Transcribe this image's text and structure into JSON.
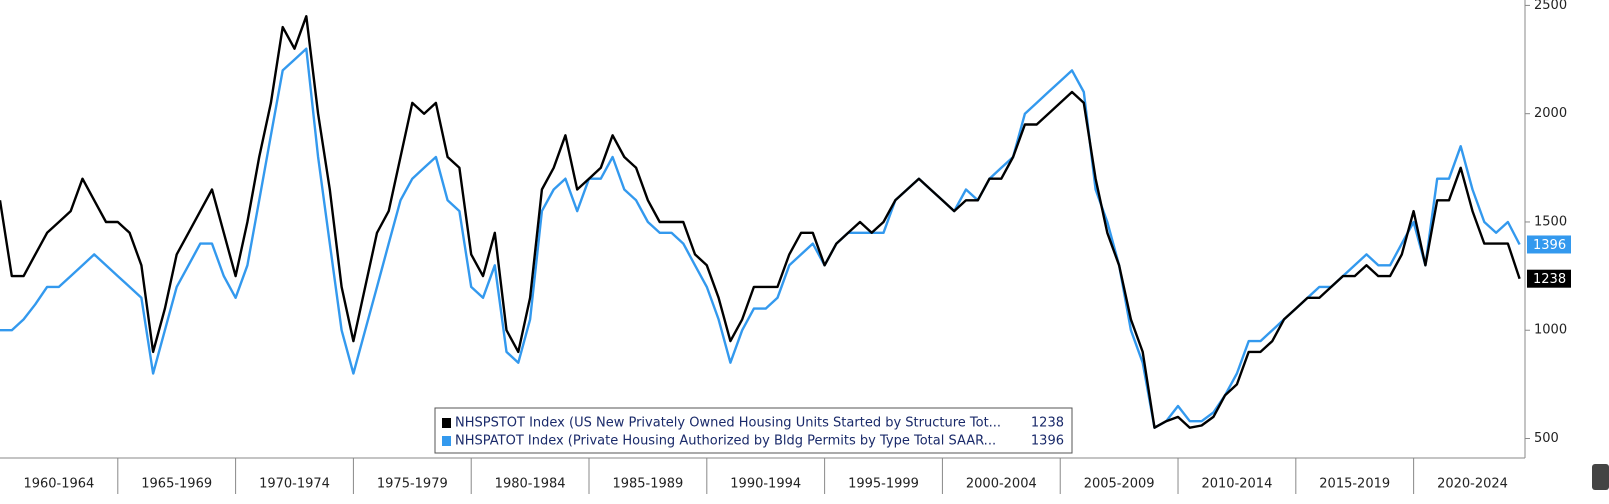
{
  "chart_data": {
    "type": "line",
    "x": [
      1960,
      1960.5,
      1961,
      1961.5,
      1962,
      1962.5,
      1963,
      1963.5,
      1964,
      1964.5,
      1965,
      1965.5,
      1966,
      1966.5,
      1967,
      1967.5,
      1968,
      1968.5,
      1969,
      1969.5,
      1970,
      1970.5,
      1971,
      1971.5,
      1972,
      1972.5,
      1973,
      1973.5,
      1974,
      1974.5,
      1975,
      1975.5,
      1976,
      1976.5,
      1977,
      1977.5,
      1978,
      1978.5,
      1979,
      1979.5,
      1980,
      1980.5,
      1981,
      1981.5,
      1982,
      1982.5,
      1983,
      1983.5,
      1984,
      1984.5,
      1985,
      1985.5,
      1986,
      1986.5,
      1987,
      1987.5,
      1988,
      1988.5,
      1989,
      1989.5,
      1990,
      1990.5,
      1991,
      1991.5,
      1992,
      1992.5,
      1993,
      1993.5,
      1994,
      1994.5,
      1995,
      1995.5,
      1996,
      1996.5,
      1997,
      1997.5,
      1998,
      1998.5,
      1999,
      1999.5,
      2000,
      2000.5,
      2001,
      2001.5,
      2002,
      2002.5,
      2003,
      2003.5,
      2004,
      2004.5,
      2005,
      2005.5,
      2006,
      2006.5,
      2007,
      2007.5,
      2008,
      2008.5,
      2009,
      2009.5,
      2010,
      2010.5,
      2011,
      2011.5,
      2012,
      2012.5,
      2013,
      2013.5,
      2014,
      2014.5,
      2015,
      2015.5,
      2016,
      2016.5,
      2017,
      2017.5,
      2018,
      2018.5,
      2019,
      2019.5,
      2020,
      2020.5,
      2021,
      2021.5,
      2022,
      2022.5,
      2023,
      2023.5,
      2024,
      2024.5
    ],
    "series": [
      {
        "name": "NHSPATOT Index (Private Housing Authorized by Bldg Permits by Type Total SAAR...",
        "color": "#3399ee",
        "last_value": 1396,
        "values": [
          1000,
          1000,
          1050,
          1120,
          1200,
          1200,
          1250,
          1300,
          1350,
          1300,
          1250,
          1200,
          1150,
          800,
          1000,
          1200,
          1300,
          1400,
          1400,
          1250,
          1150,
          1300,
          1600,
          1900,
          2200,
          2250,
          2300,
          1800,
          1400,
          1000,
          800,
          1000,
          1200,
          1400,
          1600,
          1700,
          1750,
          1800,
          1600,
          1550,
          1200,
          1150,
          1300,
          900,
          850,
          1050,
          1550,
          1650,
          1700,
          1550,
          1700,
          1700,
          1800,
          1650,
          1600,
          1500,
          1450,
          1450,
          1400,
          1300,
          1200,
          1050,
          850,
          1000,
          1100,
          1100,
          1150,
          1300,
          1350,
          1400,
          1300,
          1400,
          1450,
          1450,
          1450,
          1450,
          1600,
          1650,
          1700,
          1650,
          1600,
          1550,
          1650,
          1600,
          1700,
          1750,
          1800,
          2000,
          2050,
          2100,
          2150,
          2200,
          2100,
          1650,
          1500,
          1300,
          1000,
          850,
          550,
          580,
          650,
          580,
          580,
          620,
          700,
          800,
          950,
          950,
          1000,
          1050,
          1100,
          1150,
          1200,
          1200,
          1250,
          1300,
          1350,
          1300,
          1300,
          1400,
          1500,
          1300,
          1700,
          1700,
          1850,
          1650,
          1500,
          1450,
          1500,
          1396
        ]
      },
      {
        "name": "NHSPSTOT Index (US New Privately Owned Housing Units Started by Structure Tot...",
        "color": "#000000",
        "last_value": 1238,
        "values": [
          1600,
          1250,
          1250,
          1350,
          1450,
          1500,
          1550,
          1700,
          1600,
          1500,
          1500,
          1450,
          1300,
          900,
          1100,
          1350,
          1450,
          1550,
          1650,
          1450,
          1250,
          1500,
          1800,
          2050,
          2400,
          2300,
          2450,
          2000,
          1650,
          1200,
          950,
          1200,
          1450,
          1550,
          1800,
          2050,
          2000,
          2050,
          1800,
          1750,
          1350,
          1250,
          1450,
          1000,
          900,
          1150,
          1650,
          1750,
          1900,
          1650,
          1700,
          1750,
          1900,
          1800,
          1750,
          1600,
          1500,
          1500,
          1500,
          1350,
          1300,
          1150,
          950,
          1050,
          1200,
          1200,
          1200,
          1350,
          1450,
          1450,
          1300,
          1400,
          1450,
          1500,
          1450,
          1500,
          1600,
          1650,
          1700,
          1650,
          1600,
          1550,
          1600,
          1600,
          1700,
          1700,
          1800,
          1950,
          1950,
          2000,
          2050,
          2100,
          2050,
          1700,
          1450,
          1300,
          1050,
          900,
          550,
          580,
          600,
          550,
          560,
          600,
          700,
          750,
          900,
          900,
          950,
          1050,
          1100,
          1150,
          1150,
          1200,
          1250,
          1250,
          1300,
          1250,
          1250,
          1350,
          1550,
          1300,
          1600,
          1600,
          1750,
          1550,
          1400,
          1400,
          1400,
          1238
        ]
      }
    ],
    "xlim": [
      1960,
      2024.6
    ],
    "xticks": [
      1965,
      1970,
      1975,
      1980,
      1985,
      1990,
      1995,
      2000,
      2005,
      2010,
      2015,
      2020
    ],
    "x_periods": [
      {
        "label": "1960-1964",
        "start": 1960,
        "end": 1965
      },
      {
        "label": "1965-1969",
        "start": 1965,
        "end": 1970
      },
      {
        "label": "1970-1974",
        "start": 1970,
        "end": 1975
      },
      {
        "label": "1975-1979",
        "start": 1975,
        "end": 1980
      },
      {
        "label": "1980-1984",
        "start": 1980,
        "end": 1985
      },
      {
        "label": "1985-1989",
        "start": 1985,
        "end": 1990
      },
      {
        "label": "1990-1994",
        "start": 1990,
        "end": 1995
      },
      {
        "label": "1995-1999",
        "start": 1995,
        "end": 2000
      },
      {
        "label": "2000-2004",
        "start": 2000,
        "end": 2005
      },
      {
        "label": "2005-2009",
        "start": 2005,
        "end": 2010
      },
      {
        "label": "2010-2014",
        "start": 2010,
        "end": 2015
      },
      {
        "label": "2015-2019",
        "start": 2015,
        "end": 2020
      },
      {
        "label": "2020-2024",
        "start": 2020,
        "end": 2025
      }
    ],
    "ylim": [
      410,
      2525
    ],
    "yticks": [
      500,
      1000,
      1500,
      2000,
      2500
    ],
    "legend": "bottom-center"
  }
}
